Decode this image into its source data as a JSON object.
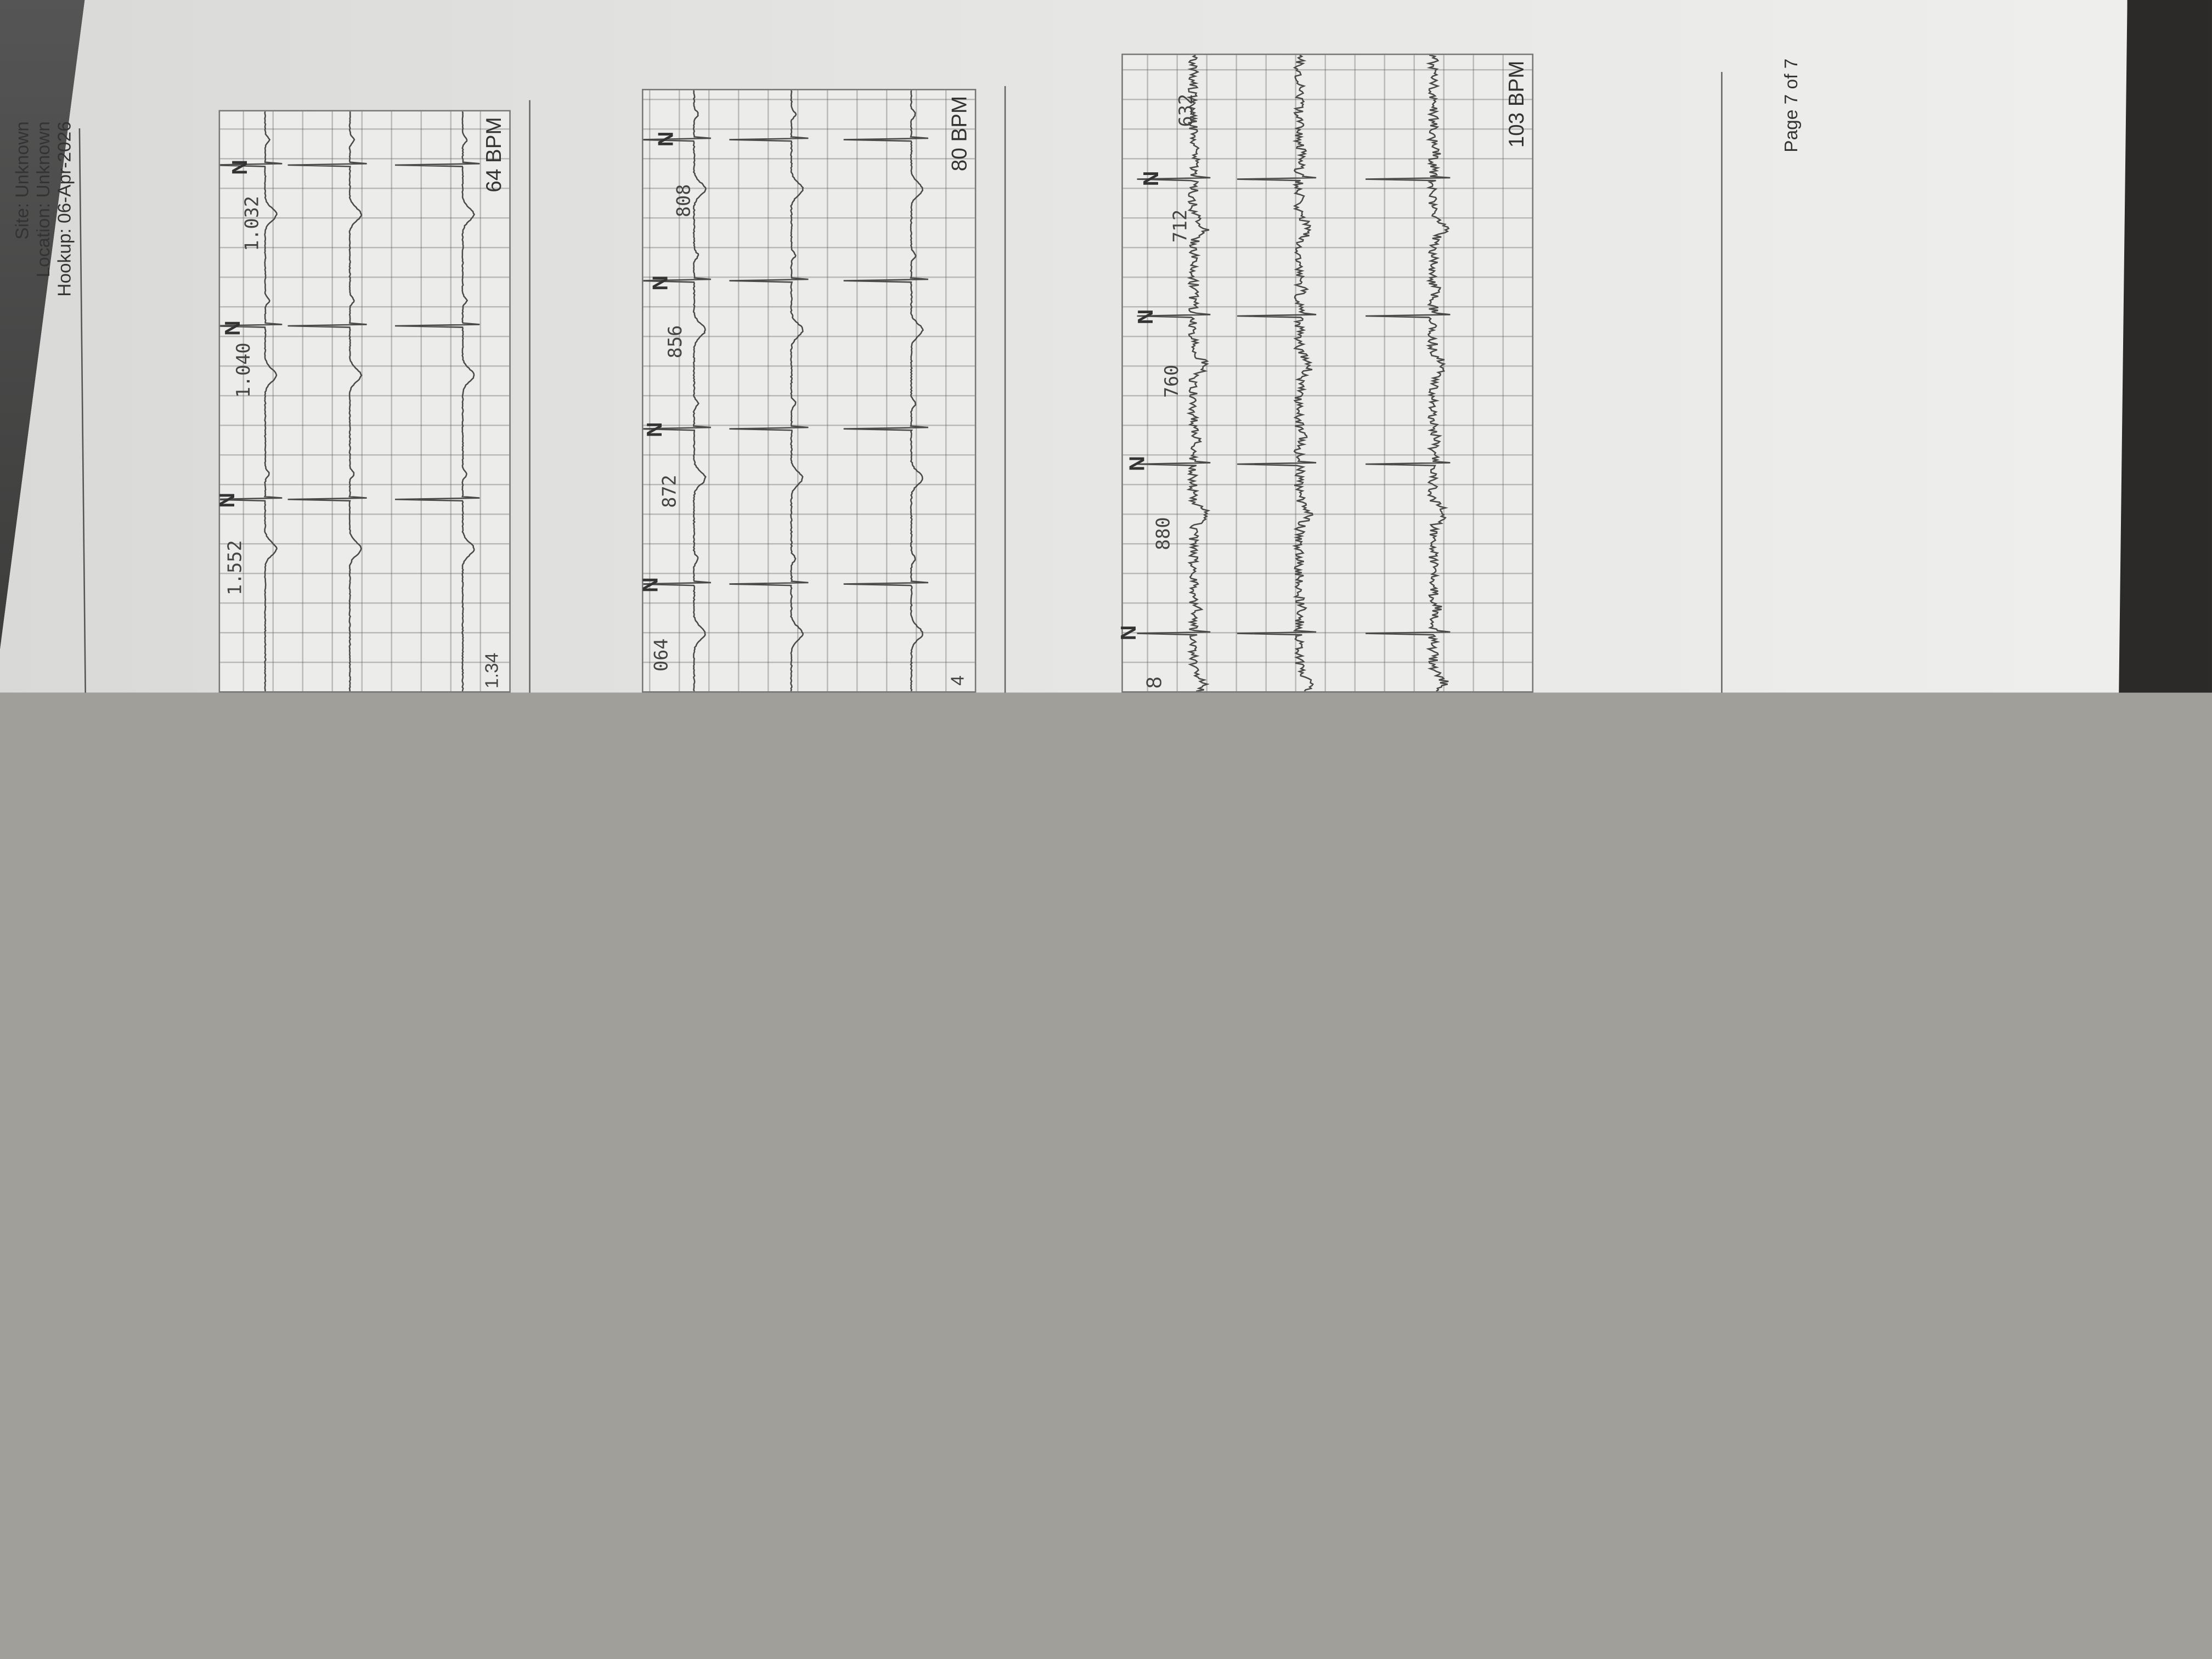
{
  "header": {
    "site": "Site: Unknown",
    "location": "Location: Unknown",
    "hookup": "Hookup:  06-Apr-2026"
  },
  "strips": [
    {
      "edge_label": "1.34",
      "rr_labels": [
        "1.552",
        "1.040",
        "1.032"
      ],
      "beat_labels": [
        "N",
        "N",
        "N"
      ],
      "heart_rate": "64 BPM"
    },
    {
      "edge_label": "4",
      "rr_labels": [
        "064",
        "872",
        "856",
        "808"
      ],
      "beat_labels": [
        "N",
        "N",
        "N",
        "N"
      ],
      "heart_rate": "80 BPM"
    },
    {
      "edge_label": "8",
      "rr_labels": [
        "880",
        "760",
        "712",
        "632"
      ],
      "beat_labels": [
        "N",
        "N",
        "N",
        "N"
      ],
      "heart_rate": "103 BPM"
    }
  ],
  "footer": {
    "page": "Page 7 of 7"
  },
  "colors": {
    "paper": "#e6e6e4",
    "trace": "#4a4a4a",
    "background": "#a19f9a"
  }
}
